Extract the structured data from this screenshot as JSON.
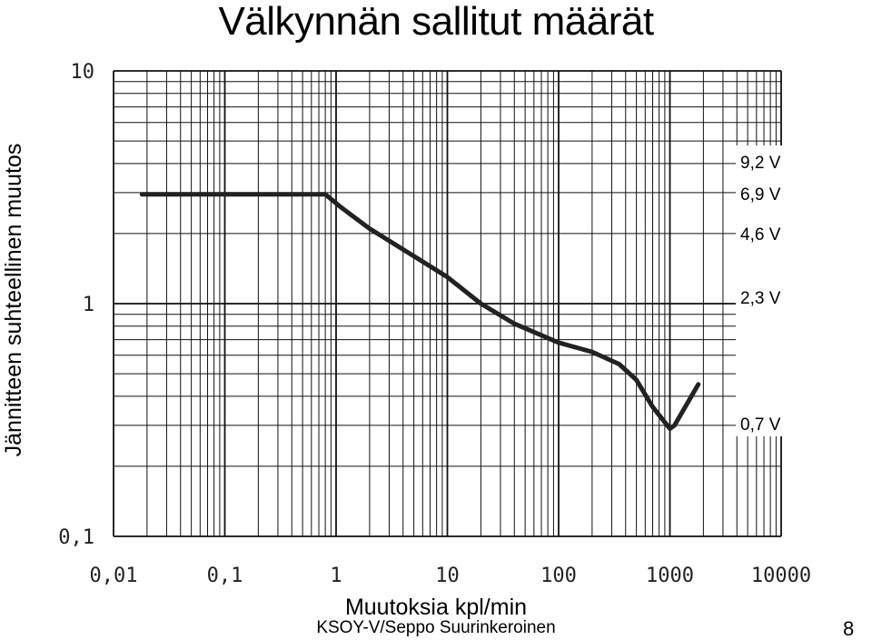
{
  "slide": {
    "title": "Välkynnän sallitut määrät",
    "footer": "KSOY-V/Seppo Suurinkeroinen",
    "page_number": "8"
  },
  "chart_data": {
    "type": "line",
    "xscale": "log",
    "yscale": "log",
    "xlim": [
      0.01,
      10000
    ],
    "ylim": [
      0.1,
      10
    ],
    "xlabel": "Muutoksia kpl/min",
    "ylabel": "Jännitteen suhteellinen muutos",
    "xticks": [
      "0,01",
      "0,1",
      "1",
      "10",
      "100",
      "1000",
      "10000"
    ],
    "yticks": [
      "0,1",
      "1",
      "10"
    ],
    "grid": true,
    "series": [
      {
        "x": [
          0.018,
          0.8,
          1.1,
          2,
          5,
          10,
          20,
          40,
          100,
          200,
          350,
          500,
          700,
          1000,
          1100,
          1800
        ],
        "y": [
          2.95,
          2.95,
          2.6,
          2.1,
          1.6,
          1.3,
          1.0,
          0.82,
          0.68,
          0.62,
          0.55,
          0.47,
          0.36,
          0.29,
          0.3,
          0.45
        ]
      }
    ],
    "annotations": [
      "9,2 V",
      "6,9 V",
      "4,6 V",
      "2,3 V",
      "0,7 V"
    ]
  }
}
